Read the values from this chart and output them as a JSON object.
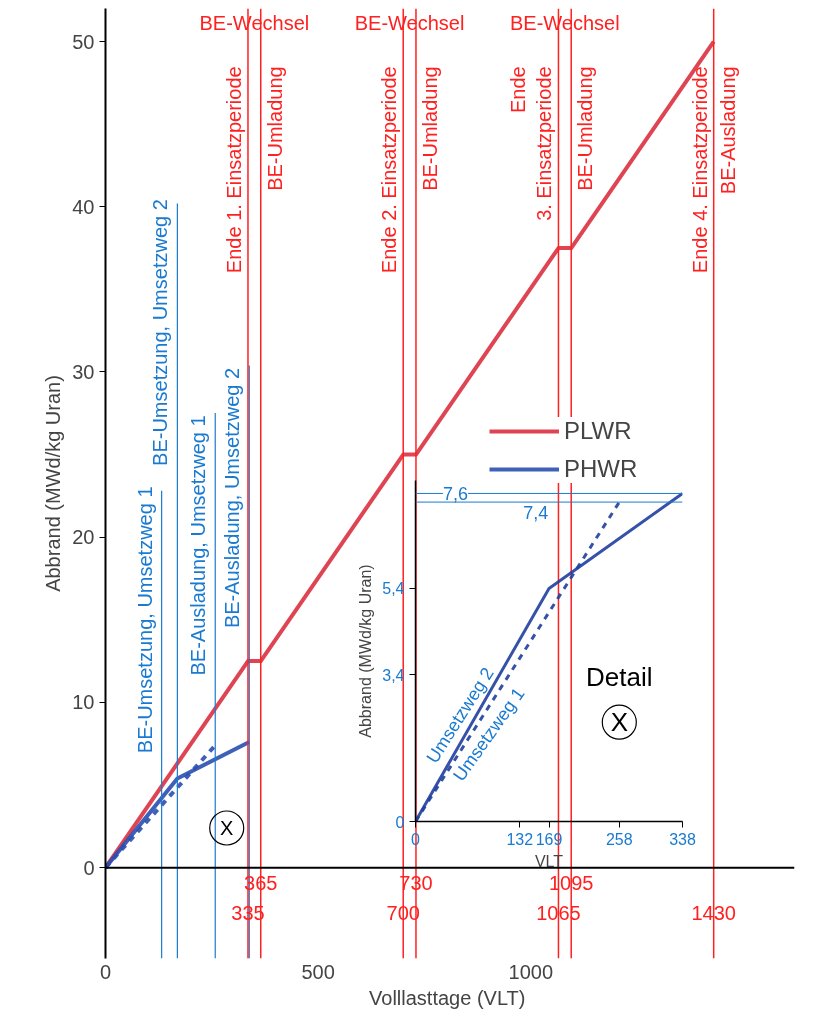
{
  "chart_data": [
    {
      "type": "line",
      "xlabel": "Volllasttage  (VLT)",
      "ylabel": "Abbrand (MWd/kg Uran)",
      "xlim": [
        0,
        1620
      ],
      "ylim": [
        -5.5,
        52
      ],
      "xticks": [
        0,
        500,
        1000
      ],
      "yticks": [
        0,
        10,
        20,
        30,
        40,
        50
      ],
      "legend": "right",
      "grid": false,
      "series": [
        {
          "name": "PLWR",
          "color": "#dc3040",
          "x": [
            0,
            335,
            365,
            700,
            730,
            1065,
            1095,
            1430
          ],
          "values": [
            0,
            12.5,
            12.5,
            25,
            25,
            37.5,
            37.5,
            50
          ]
        },
        {
          "name": "PHWR",
          "color": "#2a4fb0",
          "x": [
            0,
            169,
            338
          ],
          "values": [
            0,
            5.4,
            7.6
          ]
        },
        {
          "color": "#2a4fb0",
          "x": [
            0,
            258
          ],
          "values": [
            0,
            7.4
          ],
          "line_style": "dashed"
        }
      ],
      "ref_lines": [
        {
          "axis": "x",
          "value": 132,
          "label": "BE-Umsetzung, Umsetzweg 1",
          "color": "#1a7ad0"
        },
        {
          "axis": "x",
          "value": 169,
          "label": "BE-Umsetzung, Umsetzweg 2",
          "color": "#1a7ad0"
        },
        {
          "axis": "x",
          "value": 258,
          "label": "BE-Ausladung, Umsetzweg 1",
          "color": "#1a7ad0"
        },
        {
          "axis": "x",
          "value": 338,
          "label": "BE-Ausladung, Umsetzweg 2",
          "color": "#1a7ad0"
        },
        {
          "axis": "x",
          "value": 335,
          "label": "Ende 1. Einsatzperiode",
          "color": "#ff2020"
        },
        {
          "axis": "x",
          "value": 365,
          "label": "BE-Umladung",
          "color": "#ff2020"
        },
        {
          "axis": "x",
          "value": 700,
          "label": "Ende 2. Einsatzperiode",
          "color": "#ff2020"
        },
        {
          "axis": "x",
          "value": 730,
          "label": "BE-Umladung",
          "color": "#ff2020"
        },
        {
          "axis": "x",
          "value": 1065,
          "label": "Ende\n3. Einsatzperiode",
          "color": "#ff2020"
        },
        {
          "axis": "x",
          "value": 1095,
          "label": "BE-Umladung",
          "color": "#ff2020"
        },
        {
          "axis": "x",
          "value": 1430,
          "label": "Ende 4. Einsatzperiode",
          "color": "#ff2020"
        },
        {
          "axis": "y",
          "value": 0,
          "color": "#000000"
        }
      ],
      "annotations": [
        "BE-Wechsel",
        "BE-Wechsel",
        "BE-Wechsel",
        "BE-Ausladung",
        {
          "text": "X",
          "x": 285,
          "y": 2.4
        },
        {
          "text": "335",
          "x": 335,
          "y": 0
        },
        {
          "text": "365",
          "x": 365,
          "y": 0
        },
        {
          "text": "700",
          "x": 700,
          "y": 0
        },
        {
          "text": "730",
          "x": 730,
          "y": 0
        },
        {
          "text": "1065",
          "x": 1065,
          "y": 0
        },
        {
          "text": "1095",
          "x": 1095,
          "y": 0
        },
        {
          "text": "1430",
          "x": 1430,
          "y": 0
        }
      ]
    },
    {
      "type": "line",
      "xlabel": "VLT",
      "ylabel": "Abbrand (MWd/kg Uran)",
      "xlim": [
        0,
        338
      ],
      "ylim": [
        0,
        7.9
      ],
      "xticks": [
        0,
        132,
        169,
        258,
        338
      ],
      "yticks": [
        0,
        {
          "value": 3.4,
          "label": "3,4"
        },
        {
          "value": 5.4,
          "label": "5,4"
        }
      ],
      "grid": false,
      "legend": false,
      "series": [
        {
          "name": "Umsetzweg 2",
          "color": "#1f3f9f",
          "x": [
            0,
            169,
            338
          ],
          "values": [
            0,
            5.4,
            7.6
          ]
        },
        {
          "name": "Umsetzweg 1",
          "color": "#1f3f9f",
          "x": [
            0,
            258
          ],
          "values": [
            0,
            7.4
          ],
          "line_style": "dashed"
        }
      ],
      "ref_lines": [
        {
          "axis": "y",
          "value": 7.6,
          "label": "7,6",
          "color": "#1a7ad0"
        },
        {
          "axis": "y",
          "value": 7.4,
          "label": "7,4",
          "color": "#1a7ad0"
        }
      ],
      "annotations": [
        "Detail",
        {
          "text": "X",
          "x": 258,
          "y": 2.3
        }
      ]
    }
  ]
}
